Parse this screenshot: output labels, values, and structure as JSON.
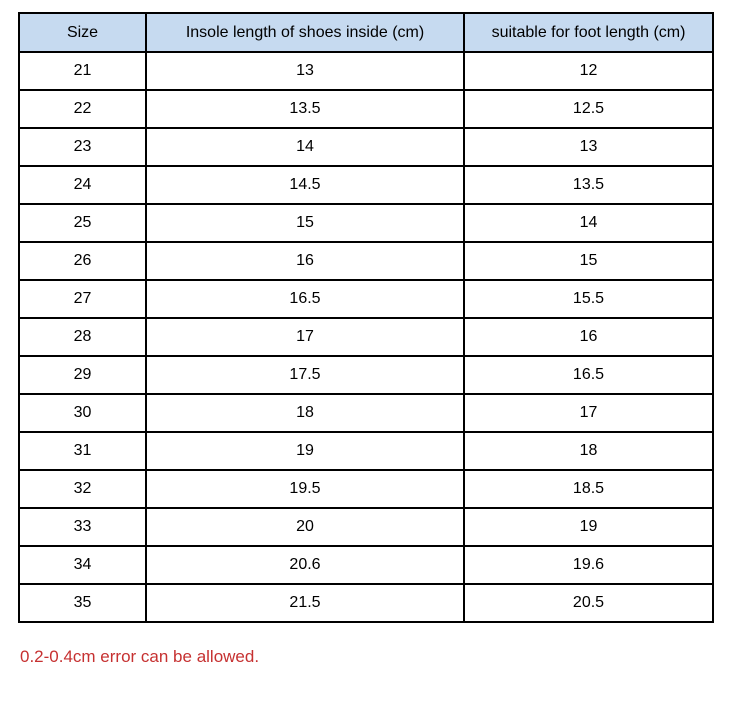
{
  "table": {
    "headers": [
      "Size",
      "Insole length of shoes inside (cm)",
      "suitable for foot length (cm)"
    ],
    "rows": [
      [
        "21",
        "13",
        "12"
      ],
      [
        "22",
        "13.5",
        "12.5"
      ],
      [
        "23",
        "14",
        "13"
      ],
      [
        "24",
        "14.5",
        "13.5"
      ],
      [
        "25",
        "15",
        "14"
      ],
      [
        "26",
        "16",
        "15"
      ],
      [
        "27",
        "16.5",
        "15.5"
      ],
      [
        "28",
        "17",
        "16"
      ],
      [
        "29",
        "17.5",
        "16.5"
      ],
      [
        "30",
        "18",
        "17"
      ],
      [
        "31",
        "19",
        "18"
      ],
      [
        "32",
        "19.5",
        "18.5"
      ],
      [
        "33",
        "20",
        "19"
      ],
      [
        "34",
        "20.6",
        "19.6"
      ],
      [
        "35",
        "21.5",
        "20.5"
      ]
    ]
  },
  "note": "0.2-0.4cm error can be allowed.",
  "colors": {
    "header_bg": "#c6daf0",
    "border": "#000000",
    "note_red": "#c63131"
  },
  "chart_data": {
    "type": "table",
    "columns": [
      "Size",
      "Insole length of shoes inside (cm)",
      "suitable for foot length (cm)"
    ],
    "rows": [
      [
        21,
        13,
        12
      ],
      [
        22,
        13.5,
        12.5
      ],
      [
        23,
        14,
        13
      ],
      [
        24,
        14.5,
        13.5
      ],
      [
        25,
        15,
        14
      ],
      [
        26,
        16,
        15
      ],
      [
        27,
        16.5,
        15.5
      ],
      [
        28,
        17,
        16
      ],
      [
        29,
        17.5,
        16.5
      ],
      [
        30,
        18,
        17
      ],
      [
        31,
        19,
        18
      ],
      [
        32,
        19.5,
        18.5
      ],
      [
        33,
        20,
        19
      ],
      [
        34,
        20.6,
        19.6
      ],
      [
        35,
        21.5,
        20.5
      ]
    ]
  }
}
